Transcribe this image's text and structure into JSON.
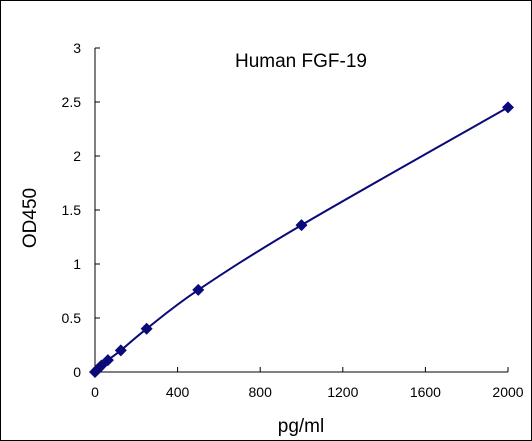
{
  "chart_data": {
    "type": "scatter",
    "title": "Human  FGF-19",
    "xlabel": "pg/ml",
    "ylabel": "OD450",
    "xlim": [
      0,
      2000
    ],
    "ylim": [
      0,
      3
    ],
    "x_ticks": [
      "0",
      "400",
      "800",
      "1200",
      "1600",
      "2000"
    ],
    "y_ticks": [
      "0",
      "0.5",
      "1",
      "1.5",
      "2",
      "2.5",
      "3"
    ],
    "grid": false,
    "legend": "none",
    "series": [
      {
        "x": [
          0,
          15.6,
          31.25,
          62.5,
          125,
          250,
          500,
          1000,
          2000
        ],
        "y": [
          0.0,
          0.03,
          0.06,
          0.11,
          0.2,
          0.4,
          0.76,
          1.36,
          2.45
        ],
        "marker": "diamond",
        "fit_line": "smooth"
      }
    ],
    "color": "#0a0a78"
  }
}
